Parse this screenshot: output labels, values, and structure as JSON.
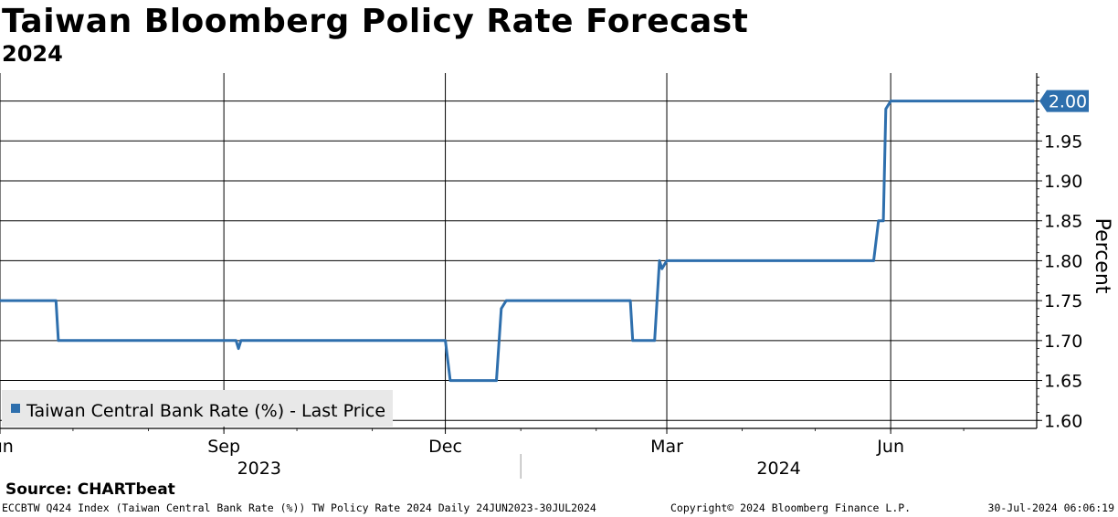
{
  "title": "Taiwan Bloomberg Policy Rate Forecast",
  "subtitle": "2024",
  "source": "Source: CHARTbeat",
  "footer": {
    "left": "ECCBTW Q424 Index (Taiwan Central Bank Rate (%)) TW Policy Rate 2024  Daily 24JUN2023-30JUL2024",
    "middle": "Copyright© 2024 Bloomberg Finance L.P.",
    "right": "30-Jul-2024 06:06:19"
  },
  "colors": {
    "line": "#2e6fad",
    "badge": "#2e6fad",
    "legend_bg": "#e8e8e8"
  },
  "chart_data": {
    "type": "line",
    "ylabel": "Percent",
    "ylim": [
      1.59,
      2.035
    ],
    "yticks": [
      "1.60",
      "1.65",
      "1.70",
      "1.75",
      "1.80",
      "1.85",
      "1.90",
      "1.95"
    ],
    "xlim": [
      "2023-06-01",
      "2024-07-31"
    ],
    "xticks": [
      {
        "date": "2023-06-01",
        "label": "Jun"
      },
      {
        "date": "2023-09-01",
        "label": "Sep"
      },
      {
        "date": "2023-12-01",
        "label": "Dec"
      },
      {
        "date": "2024-03-01",
        "label": "Mar"
      },
      {
        "date": "2024-06-01",
        "label": "Jun"
      }
    ],
    "year_labels": [
      {
        "label": "2023",
        "from": "2023-06-01",
        "to": "2023-12-31"
      },
      {
        "label": "2024",
        "from": "2024-01-01",
        "to": "2024-07-31"
      }
    ],
    "last_value_label": "2.00",
    "series": [
      {
        "name": "Taiwan Central Bank Rate (%) - Last Price",
        "points": [
          [
            "2023-06-24",
            1.75
          ],
          [
            "2023-06-25",
            1.7
          ],
          [
            "2023-09-06",
            1.7
          ],
          [
            "2023-09-07",
            1.69
          ],
          [
            "2023-09-08",
            1.7
          ],
          [
            "2023-12-01",
            1.7
          ],
          [
            "2023-12-03",
            1.65
          ],
          [
            "2023-12-22",
            1.65
          ],
          [
            "2023-12-24",
            1.74
          ],
          [
            "2023-12-26",
            1.75
          ],
          [
            "2024-02-15",
            1.75
          ],
          [
            "2024-02-16",
            1.7
          ],
          [
            "2024-02-25",
            1.7
          ],
          [
            "2024-02-27",
            1.8
          ],
          [
            "2024-02-28",
            1.79
          ],
          [
            "2024-03-01",
            1.8
          ],
          [
            "2024-05-25",
            1.8
          ],
          [
            "2024-05-27",
            1.85
          ],
          [
            "2024-05-29",
            1.85
          ],
          [
            "2024-05-30",
            1.99
          ],
          [
            "2024-06-01",
            2.0
          ],
          [
            "2024-07-30",
            2.0
          ]
        ]
      }
    ]
  }
}
